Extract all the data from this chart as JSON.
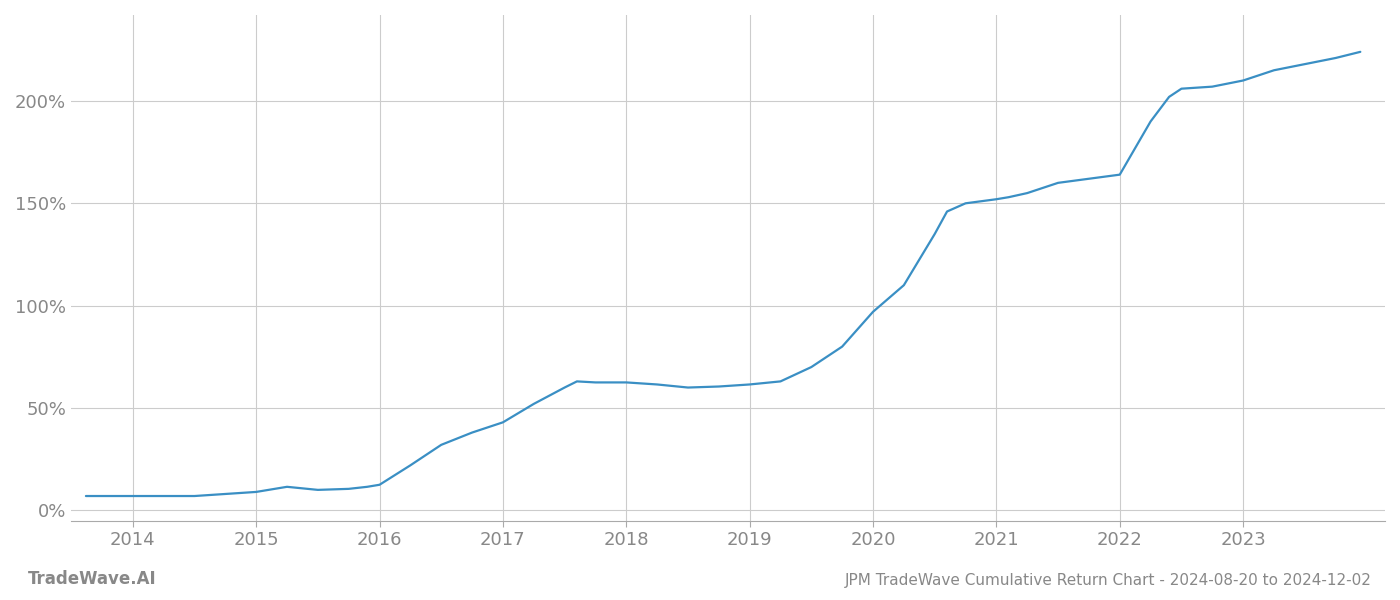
{
  "title": "JPM TradeWave Cumulative Return Chart - 2024-08-20 to 2024-12-02",
  "watermark": "TradeWave.AI",
  "line_color": "#3a8fc4",
  "background_color": "#ffffff",
  "grid_color": "#cccccc",
  "text_color": "#888888",
  "x_values": [
    2013.62,
    2014.0,
    2014.5,
    2014.75,
    2015.0,
    2015.1,
    2015.25,
    2015.5,
    2015.75,
    2015.9,
    2016.0,
    2016.25,
    2016.5,
    2016.75,
    2017.0,
    2017.25,
    2017.5,
    2017.6,
    2017.75,
    2018.0,
    2018.25,
    2018.5,
    2018.75,
    2019.0,
    2019.25,
    2019.5,
    2019.75,
    2020.0,
    2020.25,
    2020.5,
    2020.6,
    2020.75,
    2021.0,
    2021.1,
    2021.25,
    2021.4,
    2021.5,
    2021.75,
    2022.0,
    2022.25,
    2022.4,
    2022.5,
    2022.75,
    2023.0,
    2023.25,
    2023.5,
    2023.75,
    2023.95
  ],
  "y_values": [
    0.07,
    0.07,
    0.07,
    0.08,
    0.09,
    0.1,
    0.115,
    0.1,
    0.105,
    0.115,
    0.125,
    0.22,
    0.32,
    0.38,
    0.43,
    0.52,
    0.6,
    0.63,
    0.625,
    0.625,
    0.615,
    0.6,
    0.605,
    0.615,
    0.63,
    0.7,
    0.8,
    0.97,
    1.1,
    1.35,
    1.46,
    1.5,
    1.52,
    1.53,
    1.55,
    1.58,
    1.6,
    1.62,
    1.64,
    1.9,
    2.02,
    2.06,
    2.07,
    2.1,
    2.15,
    2.18,
    2.21,
    2.24
  ],
  "xlim": [
    2013.5,
    2024.15
  ],
  "ylim": [
    -0.05,
    2.42
  ],
  "yticks": [
    0.0,
    0.5,
    1.0,
    1.5,
    2.0
  ],
  "ytick_labels": [
    "0%",
    "50%",
    "100%",
    "150%",
    "200%"
  ],
  "xticks": [
    2014,
    2015,
    2016,
    2017,
    2018,
    2019,
    2020,
    2021,
    2022,
    2023
  ],
  "xtick_labels": [
    "2014",
    "2015",
    "2016",
    "2017",
    "2018",
    "2019",
    "2020",
    "2021",
    "2022",
    "2023"
  ],
  "line_width": 1.6,
  "font_family": "DejaVu Sans",
  "title_fontsize": 11,
  "tick_fontsize": 13,
  "watermark_fontsize": 12
}
